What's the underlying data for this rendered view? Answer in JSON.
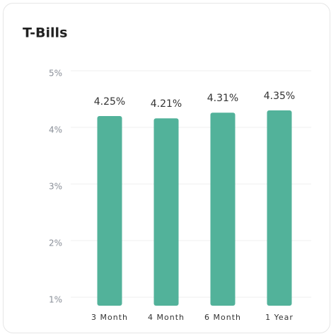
{
  "chart_data": {
    "type": "bar",
    "title": "T-Bills",
    "categories": [
      "3 Month",
      "4 Month",
      "6 Month",
      "1 Year"
    ],
    "values": [
      4.25,
      4.21,
      4.31,
      4.35
    ],
    "value_labels": [
      "4.25%",
      "4.21%",
      "4.31%",
      "4.35%"
    ],
    "color": "#52b29a",
    "ylim": [
      0.9,
      5
    ],
    "yticks": [
      {
        "value": 1,
        "label": "1%"
      },
      {
        "value": 2,
        "label": "2%"
      },
      {
        "value": 3,
        "label": "3%"
      },
      {
        "value": 4,
        "label": "4%"
      },
      {
        "value": 5,
        "label": "5%"
      }
    ],
    "grid": true
  }
}
